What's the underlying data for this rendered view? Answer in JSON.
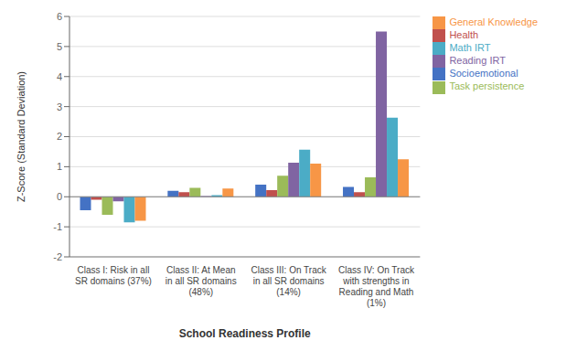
{
  "chart_data": {
    "type": "bar",
    "xlabel": "School Readiness Profile",
    "ylabel": "Z-Score (Standard Deviation)",
    "categories": [
      "Class I:  Risk in all\nSR domains (37%)",
      "Class II:  At Mean\nin all SR domains\n(48%)",
      "Class III:  On Track\nin all SR domains\n(14%)",
      "Class IV:  On Track\nwith strengths in\nReading and Math\n(1%)"
    ],
    "series": [
      {
        "name": "Socioemotional",
        "color": "#4472C4",
        "values": [
          -0.45,
          0.2,
          0.4,
          0.33
        ]
      },
      {
        "name": "Health",
        "color": "#C0504D",
        "values": [
          -0.1,
          0.15,
          0.22,
          0.15
        ]
      },
      {
        "name": "Task persistence",
        "color": "#9BBB59",
        "values": [
          -0.6,
          0.3,
          0.7,
          0.65
        ]
      },
      {
        "name": "Reading IRT",
        "color": "#8064A2",
        "values": [
          -0.15,
          0.02,
          1.13,
          5.5
        ]
      },
      {
        "name": "Math IRT",
        "color": "#4BACC6",
        "values": [
          -0.85,
          0.05,
          1.57,
          2.63
        ]
      },
      {
        "name": "General Knowledge",
        "color": "#F79646",
        "values": [
          -0.8,
          0.27,
          1.1,
          1.25
        ]
      }
    ],
    "ylim": [
      -2,
      6
    ],
    "yticks": [
      -2,
      -1,
      0,
      1,
      2,
      3,
      4,
      5,
      6
    ],
    "grid": true,
    "legend": "right"
  }
}
